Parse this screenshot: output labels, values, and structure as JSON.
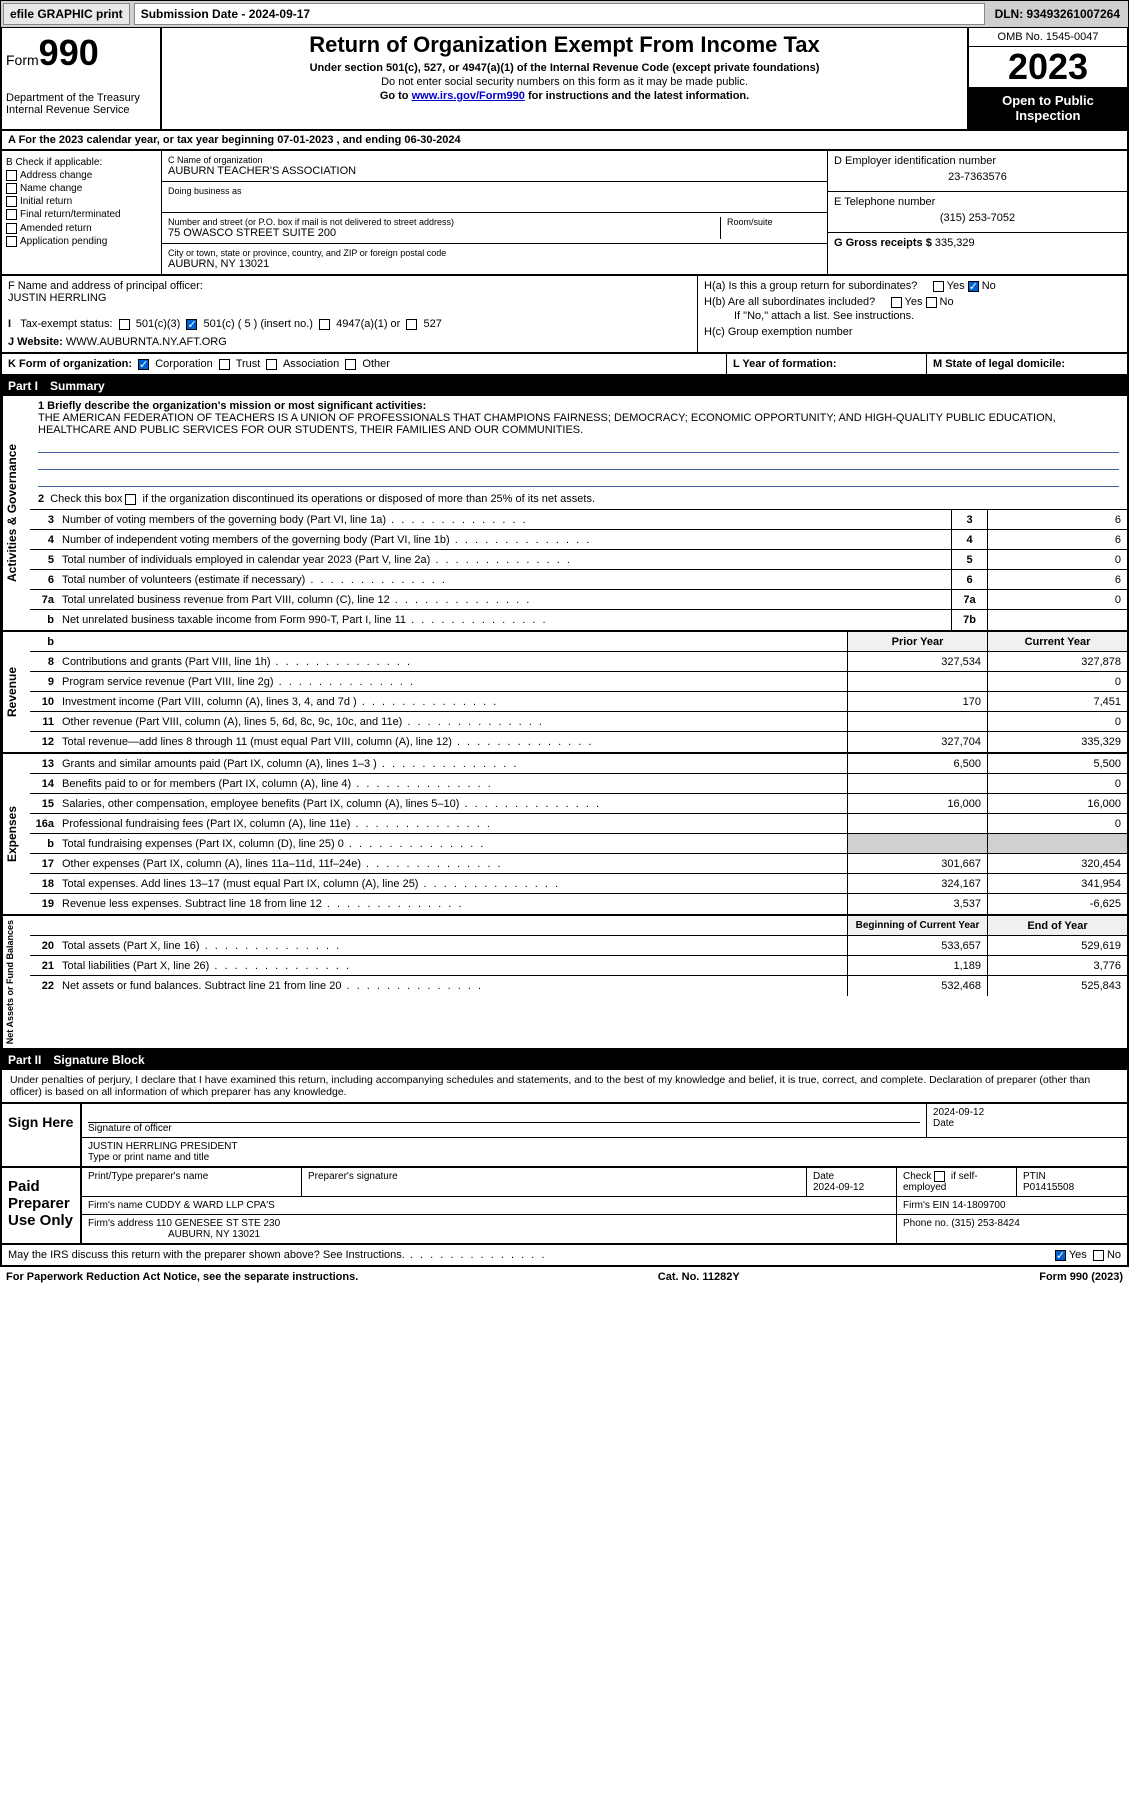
{
  "topbar": {
    "efile": "efile GRAPHIC print",
    "sub_label": "Submission Date - 2024-09-17",
    "dln": "DLN: 93493261007264"
  },
  "header": {
    "form_prefix": "Form",
    "form_num": "990",
    "dept": "Department of the Treasury Internal Revenue Service",
    "title": "Return of Organization Exempt From Income Tax",
    "sub1": "Under section 501(c), 527, or 4947(a)(1) of the Internal Revenue Code (except private foundations)",
    "sub2": "Do not enter social security numbers on this form as it may be made public.",
    "sub3_pre": "Go to ",
    "sub3_link": "www.irs.gov/Form990",
    "sub3_post": " for instructions and the latest information.",
    "omb": "OMB No. 1545-0047",
    "year": "2023",
    "open": "Open to Public Inspection"
  },
  "row_a": "A For the 2023 calendar year, or tax year beginning 07-01-2023   , and ending 06-30-2024",
  "section_b": {
    "check_label": "B Check if applicable:",
    "checks": [
      "Address change",
      "Name change",
      "Initial return",
      "Final return/terminated",
      "Amended return",
      "Application pending"
    ],
    "c_label": "C Name of organization",
    "c_name": "AUBURN TEACHER'S ASSOCIATION",
    "dba_label": "Doing business as",
    "addr_label": "Number and street (or P.O. box if mail is not delivered to street address)",
    "room_label": "Room/suite",
    "addr": "75 OWASCO STREET SUITE 200",
    "city_label": "City or town, state or province, country, and ZIP or foreign postal code",
    "city": "AUBURN, NY  13021",
    "d_label": "D Employer identification number",
    "d_val": "23-7363576",
    "e_label": "E Telephone number",
    "e_val": "(315) 253-7052",
    "g_label": "G Gross receipts $",
    "g_val": "335,329"
  },
  "section_f": {
    "f_label": "F Name and address of principal officer:",
    "f_name": "JUSTIN HERRLING",
    "ha_label": "H(a)  Is this a group return for subordinates?",
    "ha_yes": "Yes",
    "ha_no": "No",
    "hb_label": "H(b)  Are all subordinates included?",
    "hb_note": "If \"No,\" attach a list. See instructions.",
    "hc_label": "H(c)  Group exemption number  "
  },
  "row_i": {
    "label": "I   Tax-exempt status:",
    "c3": "501(c)(3)",
    "c5": "501(c) ( 5 ) (insert no.)",
    "c4947": "4947(a)(1) or",
    "c527": "527"
  },
  "row_j": {
    "label": "J   Website: ",
    "val": "WWW.AUBURNTA.NY.AFT.ORG"
  },
  "row_k": {
    "k_label": "K Form of organization:",
    "opts": [
      "Corporation",
      "Trust",
      "Association",
      "Other"
    ],
    "l_label": "L Year of formation:",
    "m_label": "M State of legal domicile:"
  },
  "part1": {
    "num": "Part I",
    "title": "Summary"
  },
  "mission": {
    "q1": "1  Briefly describe the organization's mission or most significant activities:",
    "text": "THE AMERICAN FEDERATION OF TEACHERS IS A UNION OF PROFESSIONALS THAT CHAMPIONS FAIRNESS; DEMOCRACY; ECONOMIC OPPORTUNITY; AND HIGH-QUALITY PUBLIC EDUCATION, HEALTHCARE AND PUBLIC SERVICES FOR OUR STUDENTS, THEIR FAMILIES AND OUR COMMUNITIES.",
    "q2": "2  Check this box      if the organization discontinued its operations or disposed of more than 25% of its net assets."
  },
  "gov_rows": [
    {
      "n": "3",
      "d": "Number of voting members of the governing body (Part VI, line 1a)",
      "box": "3",
      "v": "6"
    },
    {
      "n": "4",
      "d": "Number of independent voting members of the governing body (Part VI, line 1b)",
      "box": "4",
      "v": "6"
    },
    {
      "n": "5",
      "d": "Total number of individuals employed in calendar year 2023 (Part V, line 2a)",
      "box": "5",
      "v": "0"
    },
    {
      "n": "6",
      "d": "Total number of volunteers (estimate if necessary)",
      "box": "6",
      "v": "6"
    },
    {
      "n": "7a",
      "d": "Total unrelated business revenue from Part VIII, column (C), line 12",
      "box": "7a",
      "v": "0"
    },
    {
      "n": "b",
      "d": "Net unrelated business taxable income from Form 990-T, Part I, line 11",
      "box": "7b",
      "v": ""
    }
  ],
  "col_hdrs": {
    "py": "Prior Year",
    "cy": "Current Year"
  },
  "rev_rows": [
    {
      "n": "8",
      "d": "Contributions and grants (Part VIII, line 1h)",
      "py": "327,534",
      "cy": "327,878"
    },
    {
      "n": "9",
      "d": "Program service revenue (Part VIII, line 2g)",
      "py": "",
      "cy": "0"
    },
    {
      "n": "10",
      "d": "Investment income (Part VIII, column (A), lines 3, 4, and 7d )",
      "py": "170",
      "cy": "7,451"
    },
    {
      "n": "11",
      "d": "Other revenue (Part VIII, column (A), lines 5, 6d, 8c, 9c, 10c, and 11e)",
      "py": "",
      "cy": "0"
    },
    {
      "n": "12",
      "d": "Total revenue—add lines 8 through 11 (must equal Part VIII, column (A), line 12)",
      "py": "327,704",
      "cy": "335,329"
    }
  ],
  "exp_rows": [
    {
      "n": "13",
      "d": "Grants and similar amounts paid (Part IX, column (A), lines 1–3 )",
      "py": "6,500",
      "cy": "5,500"
    },
    {
      "n": "14",
      "d": "Benefits paid to or for members (Part IX, column (A), line 4)",
      "py": "",
      "cy": "0"
    },
    {
      "n": "15",
      "d": "Salaries, other compensation, employee benefits (Part IX, column (A), lines 5–10)",
      "py": "16,000",
      "cy": "16,000"
    },
    {
      "n": "16a",
      "d": "Professional fundraising fees (Part IX, column (A), line 11e)",
      "py": "",
      "cy": "0"
    },
    {
      "n": "b",
      "d": "Total fundraising expenses (Part IX, column (D), line 25) 0",
      "py": "grey",
      "cy": "grey"
    },
    {
      "n": "17",
      "d": "Other expenses (Part IX, column (A), lines 11a–11d, 11f–24e)",
      "py": "301,667",
      "cy": "320,454"
    },
    {
      "n": "18",
      "d": "Total expenses. Add lines 13–17 (must equal Part IX, column (A), line 25)",
      "py": "324,167",
      "cy": "341,954"
    },
    {
      "n": "19",
      "d": "Revenue less expenses. Subtract line 18 from line 12",
      "py": "3,537",
      "cy": "-6,625"
    }
  ],
  "na_hdrs": {
    "py": "Beginning of Current Year",
    "cy": "End of Year"
  },
  "na_rows": [
    {
      "n": "20",
      "d": "Total assets (Part X, line 16)",
      "py": "533,657",
      "cy": "529,619"
    },
    {
      "n": "21",
      "d": "Total liabilities (Part X, line 26)",
      "py": "1,189",
      "cy": "3,776"
    },
    {
      "n": "22",
      "d": "Net assets or fund balances. Subtract line 21 from line 20",
      "py": "532,468",
      "cy": "525,843"
    }
  ],
  "part2": {
    "num": "Part II",
    "title": "Signature Block"
  },
  "perjury": "Under penalties of perjury, I declare that I have examined this return, including accompanying schedules and statements, and to the best of my knowledge and belief, it is true, correct, and complete. Declaration of preparer (other than officer) is based on all information of which preparer has any knowledge.",
  "sign": {
    "here": "Sign Here",
    "sig_label": "Signature of officer",
    "name": "JUSTIN HERRLING  PRESIDENT",
    "name_label": "Type or print name and title",
    "date_label": "Date",
    "date": "2024-09-12"
  },
  "preparer": {
    "label": "Paid Preparer Use Only",
    "h1": "Print/Type preparer's name",
    "h2": "Preparer's signature",
    "h3": "Date",
    "h3v": "2024-09-12",
    "h4": "Check       if self-employed",
    "h5": "PTIN",
    "h5v": "P01415508",
    "firm_label": "Firm's name     ",
    "firm": "CUDDY & WARD LLP CPA'S",
    "ein_label": "Firm's EIN  ",
    "ein": "14-1809700",
    "addr_label": "Firm's address ",
    "addr1": "110 GENESEE ST STE 230",
    "addr2": "AUBURN, NY  13021",
    "phone_label": "Phone no. ",
    "phone": "(315) 253-8424"
  },
  "discuss": {
    "q": "May the IRS discuss this return with the preparer shown above? See Instructions.",
    "yes": "Yes",
    "no": "No"
  },
  "footer": {
    "l": "For Paperwork Reduction Act Notice, see the separate instructions.",
    "m": "Cat. No. 11282Y",
    "r": "Form 990 (2023)"
  },
  "side_labels": {
    "gov": "Activities & Governance",
    "rev": "Revenue",
    "exp": "Expenses",
    "na": "Net Assets or Fund Balances"
  }
}
